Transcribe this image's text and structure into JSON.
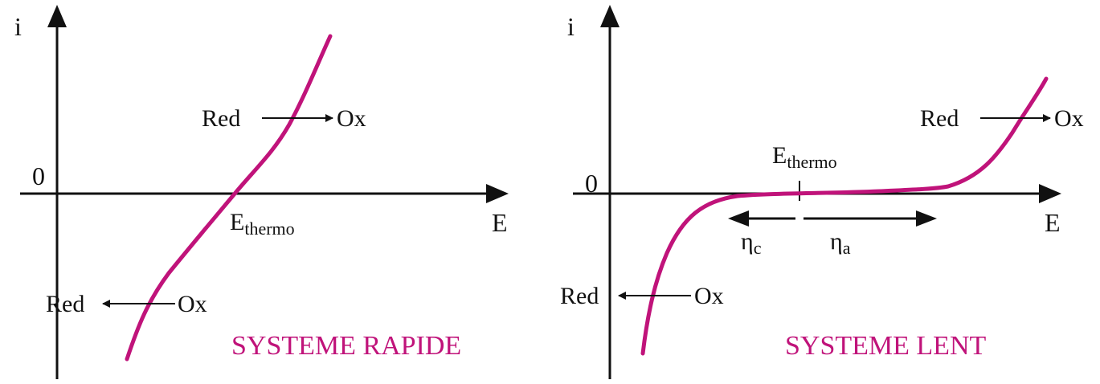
{
  "colors": {
    "axis": "#111111",
    "curve": "#c0137a",
    "title": "#c0137a"
  },
  "left": {
    "y_axis_label": "i",
    "x_axis_label": "E",
    "origin_label": "0",
    "e_label_main": "E",
    "e_label_sub": "thermo",
    "oxidation_from": "Red",
    "oxidation_to": "Ox",
    "reduction_from": "Ox",
    "reduction_to": "Red",
    "title": "SYSTEME RAPIDE"
  },
  "right": {
    "y_axis_label": "i",
    "x_axis_label": "E",
    "origin_label": "0",
    "e_label_main": "E",
    "e_label_sub": "thermo",
    "eta_c_main": "η",
    "eta_c_sub": "c",
    "eta_a_main": "η",
    "eta_a_sub": "a",
    "oxidation_from": "Red",
    "oxidation_to": "Ox",
    "reduction_from": "Ox",
    "reduction_to": "Red",
    "title": "SYSTEME LENT"
  }
}
